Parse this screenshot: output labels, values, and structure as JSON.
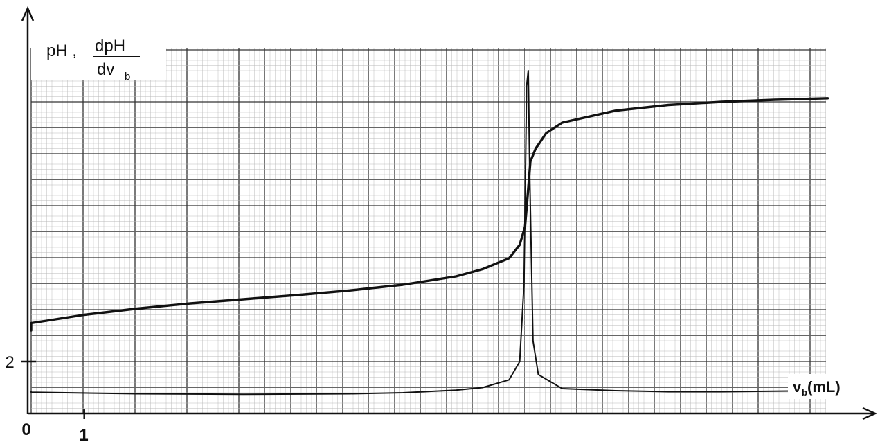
{
  "chart_data": {
    "type": "line",
    "title": "",
    "ylabel_main": "pH ,",
    "ylabel_frac_num": "dpH",
    "ylabel_frac_den": "dv",
    "ylabel_frac_den_sub": "b",
    "xlabel_main": "v",
    "xlabel_sub": "b",
    "xlabel_unit": " (mL)",
    "x_origin_label": "0",
    "x_tick_label": "1",
    "y_tick_label": "2",
    "xlim": [
      0,
      15
    ],
    "ylim": [
      1.2,
      8.0
    ],
    "grid": true,
    "series": [
      {
        "x": [
          -0.6,
          0,
          1,
          2,
          3,
          4,
          5,
          6,
          7,
          8,
          8.5,
          9,
          9.2,
          9.3,
          9.35,
          9.4,
          9.5,
          9.7,
          10,
          11,
          12,
          13,
          14,
          15
        ],
        "y": [
          2.6,
          2.74,
          2.9,
          3.02,
          3.12,
          3.2,
          3.28,
          3.37,
          3.48,
          3.64,
          3.78,
          3.99,
          4.25,
          4.6,
          5.2,
          5.85,
          6.1,
          6.4,
          6.6,
          6.83,
          6.94,
          7.0,
          7.04,
          7.07
        ]
      },
      {
        "x": [
          -0.6,
          0,
          2,
          4,
          6,
          7,
          8,
          8.5,
          9,
          9.2,
          9.28,
          9.33,
          9.36,
          9.39,
          9.45,
          9.55,
          10,
          11,
          12,
          13,
          14,
          15
        ],
        "y": [
          1.42,
          1.41,
          1.38,
          1.37,
          1.38,
          1.4,
          1.45,
          1.5,
          1.65,
          2.0,
          3.5,
          7.3,
          7.6,
          5.5,
          2.4,
          1.75,
          1.48,
          1.44,
          1.42,
          1.42,
          1.43,
          1.44
        ]
      }
    ]
  }
}
